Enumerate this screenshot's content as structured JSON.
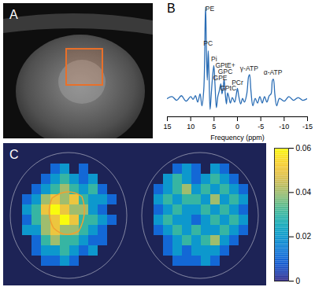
{
  "chart_data": [
    {
      "type": "image",
      "title": "A"
    },
    {
      "type": "line",
      "title": "B",
      "x": [
        15,
        14,
        13,
        12,
        11,
        10,
        9.5,
        9,
        8.5,
        8,
        7.6,
        7.2,
        6.9,
        6.8,
        6.65,
        6.45,
        6.25,
        6.1,
        5.85,
        5.6,
        5.3,
        5.05,
        4.8,
        4.5,
        4.2,
        3.9,
        3.55,
        3.3,
        3.05,
        2.85,
        2.6,
        2.35,
        2.1,
        1.85,
        1.5,
        1.1,
        0.6,
        0.25,
        0,
        -0.3,
        -0.7,
        -1.1,
        -1.5,
        -2,
        -2.4,
        -2.6,
        -2.9,
        -3.3,
        -3.8,
        -4.3,
        -4.8,
        -5.3,
        -5.8,
        -6.3,
        -6.8,
        -7.2,
        -7.5,
        -7.7,
        -8,
        -8.4,
        -9,
        -10,
        -11,
        -12,
        -13,
        -14,
        -15
      ],
      "values": [
        0,
        0.02,
        -0.02,
        0.03,
        -0.03,
        0.02,
        -0.01,
        0.03,
        -0.04,
        0.05,
        -0.08,
        0.1,
        0.85,
        1,
        0.55,
        0.2,
        0.52,
        0.3,
        -0.12,
        0.05,
        0.25,
        0.36,
        0.15,
        -0.1,
        0.02,
        0.08,
        0.16,
        0.05,
        0.12,
        0.21,
        0.05,
        -0.06,
        0.06,
        0.02,
        -0.05,
        0.01,
        -0.04,
        0.04,
        0.11,
        0.02,
        -0.06,
        0,
        -0.04,
        0.05,
        0.24,
        0.26,
        0.08,
        -0.08,
        0,
        -0.05,
        0.02,
        -0.05,
        0.02,
        -0.04,
        0.03,
        0.05,
        0.2,
        0.21,
        0.05,
        -0.08,
        0,
        -0.03,
        0.02,
        -0.02,
        0.01,
        -0.02,
        0
      ],
      "color": "#2a6db5",
      "xlabel": "Frequency (ppm)",
      "xlim": [
        15,
        -15
      ],
      "xticks": [
        15,
        10,
        5,
        0,
        -5,
        -10,
        -15
      ],
      "ylim": [
        -0.2,
        1.02
      ],
      "yticks": [],
      "tick_labels": "x",
      "annotations": [
        {
          "text": "PE",
          "x": 5.9,
          "y": 0.98
        },
        {
          "text": "PC",
          "x": 6.3,
          "y": 0.6
        },
        {
          "text": "Pi",
          "x": 5.0,
          "y": 0.43
        },
        {
          "text": "GPE",
          "x": 3.7,
          "y": 0.22
        },
        {
          "text": "GPtE+",
          "x": 2.6,
          "y": 0.36
        },
        {
          "text": "GPC",
          "x": 2.6,
          "y": 0.29
        },
        {
          "text": "GPtC",
          "x": 2.0,
          "y": 0.11
        },
        {
          "text": "PCr",
          "x": 0,
          "y": 0.17
        },
        {
          "text": "γ-ATP",
          "x": -2.5,
          "y": 0.33
        },
        {
          "text": "α-ATP",
          "x": -7.6,
          "y": 0.28
        }
      ]
    },
    {
      "type": "heatmap",
      "title": "C",
      "maps": [
        [
          [
            null,
            null,
            null,
            null,
            null,
            null,
            null,
            null,
            null,
            null,
            null,
            null
          ],
          [
            null,
            null,
            null,
            null,
            0.01,
            0.02,
            null,
            0.01,
            null,
            null,
            null,
            null
          ],
          [
            null,
            null,
            null,
            0.01,
            0.02,
            0.03,
            0.02,
            0.01,
            0.02,
            null,
            null,
            null
          ],
          [
            null,
            null,
            0.01,
            0.02,
            0.03,
            0.04,
            0.03,
            0.02,
            0.03,
            0.01,
            null,
            null
          ],
          [
            null,
            0.01,
            0.02,
            0.04,
            0.05,
            0.04,
            0.05,
            0.03,
            0.02,
            0.02,
            0.01,
            null
          ],
          [
            null,
            0.02,
            0.03,
            0.05,
            0.06,
            0.05,
            0.04,
            0.04,
            0.02,
            0.01,
            null,
            null
          ],
          [
            null,
            0.01,
            0.03,
            0.04,
            0.05,
            0.06,
            0.05,
            0.03,
            0.03,
            0.02,
            0.01,
            null
          ],
          [
            null,
            0.02,
            0.02,
            0.04,
            0.05,
            0.04,
            0.04,
            0.03,
            0.02,
            0.01,
            null,
            null
          ],
          [
            null,
            null,
            0.01,
            0.03,
            0.04,
            0.03,
            0.03,
            0.02,
            0.01,
            0.01,
            null,
            null
          ],
          [
            null,
            null,
            0.01,
            0.02,
            0.02,
            0.03,
            0.02,
            0.01,
            0.02,
            null,
            null,
            null
          ],
          [
            null,
            null,
            null,
            0.01,
            0.01,
            0.02,
            0.01,
            null,
            null,
            null,
            null,
            null
          ],
          [
            null,
            null,
            null,
            null,
            null,
            null,
            null,
            null,
            null,
            null,
            null,
            null
          ]
        ],
        [
          [
            null,
            null,
            null,
            null,
            null,
            null,
            null,
            null,
            null,
            null,
            null,
            null
          ],
          [
            null,
            null,
            null,
            0.01,
            0.02,
            0.01,
            null,
            0.02,
            0.01,
            null,
            null,
            null
          ],
          [
            null,
            null,
            0.02,
            0.03,
            0.02,
            0.01,
            0.02,
            0.03,
            0.02,
            0.01,
            null,
            null
          ],
          [
            null,
            0.01,
            0.02,
            0.03,
            0.04,
            0.02,
            0.03,
            0.02,
            0.03,
            0.02,
            0.01,
            null
          ],
          [
            null,
            0.02,
            0.03,
            0.02,
            0.03,
            0.03,
            0.02,
            0.04,
            0.02,
            0.03,
            0.02,
            null
          ],
          [
            null,
            0.01,
            0.02,
            0.03,
            0.02,
            0.02,
            0.03,
            0.02,
            0.03,
            0.02,
            0.01,
            null
          ],
          [
            null,
            0.02,
            0.03,
            0.02,
            0.02,
            0.01,
            0.02,
            0.03,
            0.02,
            0.03,
            0.02,
            null
          ],
          [
            null,
            0.01,
            0.02,
            0.03,
            0.02,
            0.03,
            0.02,
            0.02,
            0.03,
            0.02,
            0.01,
            null
          ],
          [
            null,
            null,
            0.01,
            0.02,
            0.03,
            0.02,
            0.03,
            0.04,
            0.02,
            0.01,
            null,
            null
          ],
          [
            null,
            null,
            0.01,
            0.02,
            0.01,
            0.02,
            0.02,
            0.02,
            0.01,
            null,
            null,
            null
          ],
          [
            null,
            null,
            null,
            0.01,
            0.01,
            0.01,
            0.02,
            0.01,
            null,
            null,
            null,
            null
          ],
          [
            null,
            null,
            null,
            null,
            null,
            null,
            null,
            null,
            null,
            null,
            null,
            null
          ]
        ]
      ],
      "colorbar": {
        "lim": [
          0,
          0.06
        ],
        "ticks": [
          0,
          0.02,
          0.04,
          0.06
        ]
      }
    }
  ]
}
